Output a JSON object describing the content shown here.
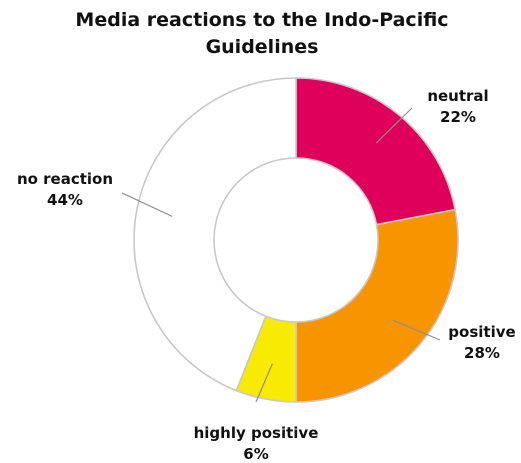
{
  "chart_data": {
    "type": "pie",
    "title_lines": [
      "Media reactions to the Indo-Pacific",
      "Guidelines"
    ],
    "slices": [
      {
        "name": "neutral",
        "value": 22,
        "label": "22%",
        "color": "#de005a"
      },
      {
        "name": "positive",
        "value": 28,
        "label": "28%",
        "color": "#f79400"
      },
      {
        "name": "highly positive",
        "value": 6,
        "label": "6%",
        "color": "#f8ea00"
      },
      {
        "name": "no reaction",
        "value": 44,
        "label": "44%",
        "color": "#ffffff"
      }
    ]
  }
}
